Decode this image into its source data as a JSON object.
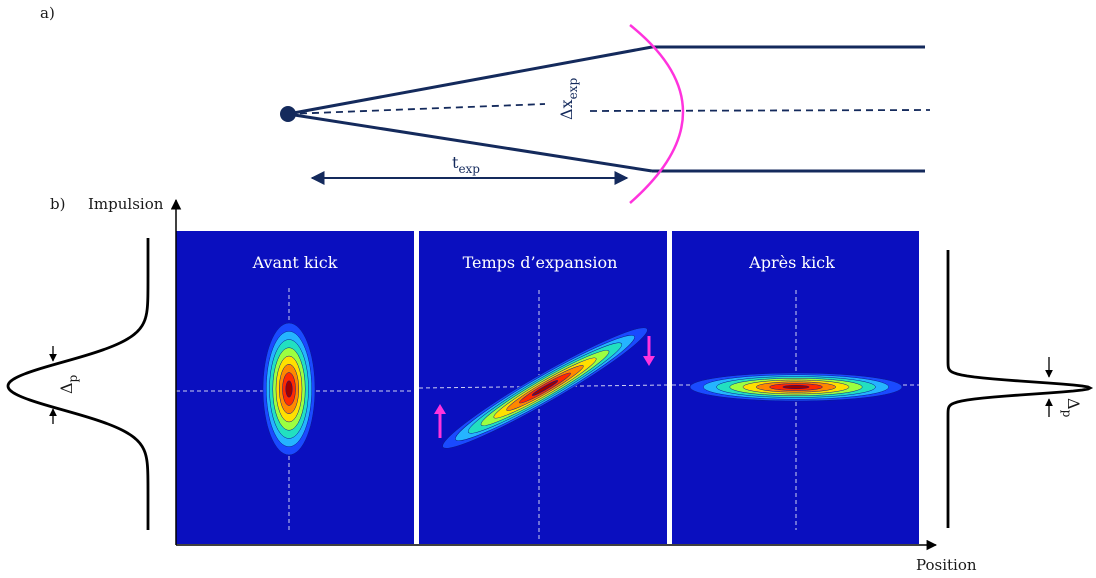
{
  "part_a": {
    "label": "a)",
    "delta_x": "Δx",
    "delta_x_sub": "exp",
    "t": "t",
    "t_sub": "exp"
  },
  "part_b": {
    "label": "b)",
    "y_axis_label": "Impulsion",
    "x_axis_label": "Position",
    "panels": [
      {
        "title": "Avant kick"
      },
      {
        "title": "Temps d’expansion"
      },
      {
        "title": "Après kick"
      }
    ],
    "left_profile_label": "Δ",
    "left_profile_sub": "p",
    "right_profile_label": "Δ",
    "right_profile_sub": "p"
  },
  "colors": {
    "panel_bg": "#0a0fbf",
    "navy": "#142a5c",
    "magenta": "#ff33dd",
    "contours": [
      "#1a4aff",
      "#25b4ff",
      "#22e0c0",
      "#9cff40",
      "#ffe000",
      "#ff8800",
      "#ff2a00",
      "#a00000"
    ]
  }
}
